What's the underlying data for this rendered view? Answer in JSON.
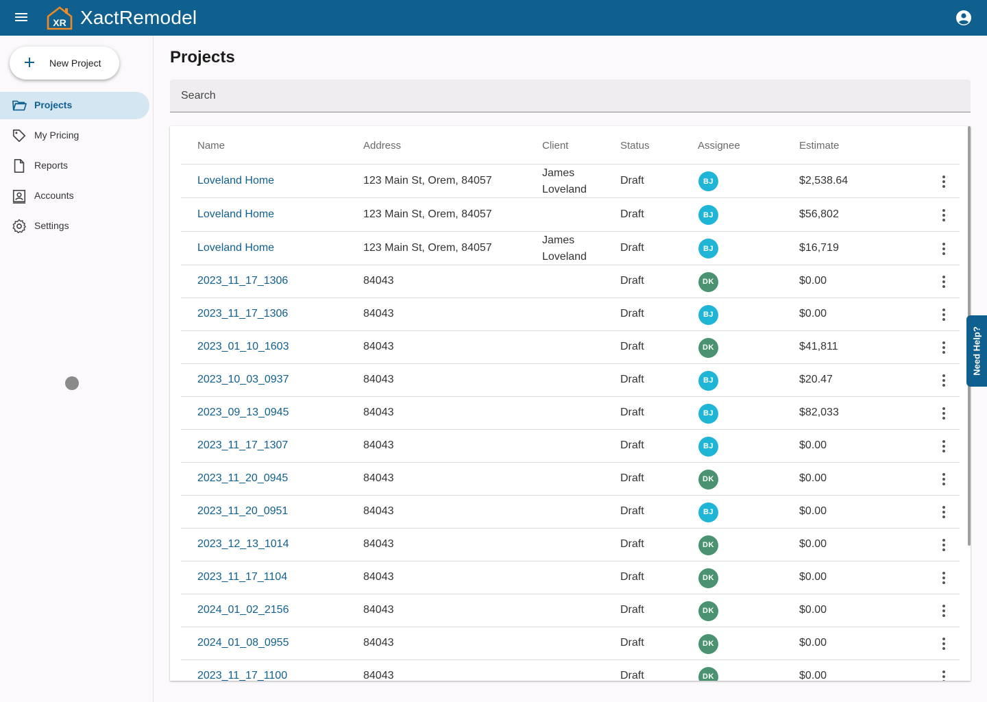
{
  "app": {
    "title": "XactRemodel",
    "logo_text": "XR",
    "brand_color": "#10608f",
    "accent_orange": "#f08a24"
  },
  "sidebar": {
    "new_project_label": "New Project",
    "items": [
      {
        "label": "Projects",
        "icon": "folder-open-icon",
        "active": true
      },
      {
        "label": "My Pricing",
        "icon": "tag-icon",
        "active": false
      },
      {
        "label": "Reports",
        "icon": "document-icon",
        "active": false
      },
      {
        "label": "Accounts",
        "icon": "account-box-icon",
        "active": false
      },
      {
        "label": "Settings",
        "icon": "gear-icon",
        "active": false
      }
    ]
  },
  "main": {
    "page_title": "Projects",
    "search_placeholder": "Search",
    "columns": [
      "Name",
      "Address",
      "Client",
      "Status",
      "Assignee",
      "Estimate"
    ],
    "rows": [
      {
        "name": "Loveland Home",
        "address": "123 Main St, Orem, 84057",
        "client": "James Loveland",
        "status": "Draft",
        "assignee": "BJ",
        "estimate": "$2,538.64"
      },
      {
        "name": "Loveland Home",
        "address": "123 Main St, Orem, 84057",
        "client": "",
        "status": "Draft",
        "assignee": "BJ",
        "estimate": "$56,802"
      },
      {
        "name": "Loveland Home",
        "address": "123 Main St, Orem, 84057",
        "client": "James Loveland",
        "status": "Draft",
        "assignee": "BJ",
        "estimate": "$16,719"
      },
      {
        "name": "2023_11_17_1306",
        "address": "84043",
        "client": "",
        "status": "Draft",
        "assignee": "DK",
        "estimate": "$0.00"
      },
      {
        "name": "2023_11_17_1306",
        "address": "84043",
        "client": "",
        "status": "Draft",
        "assignee": "BJ",
        "estimate": "$0.00"
      },
      {
        "name": "2023_01_10_1603",
        "address": "84043",
        "client": "",
        "status": "Draft",
        "assignee": "DK",
        "estimate": "$41,811"
      },
      {
        "name": "2023_10_03_0937",
        "address": "84043",
        "client": "",
        "status": "Draft",
        "assignee": "BJ",
        "estimate": "$20.47"
      },
      {
        "name": "2023_09_13_0945",
        "address": "84043",
        "client": "",
        "status": "Draft",
        "assignee": "BJ",
        "estimate": "$82,033"
      },
      {
        "name": "2023_11_17_1307",
        "address": "84043",
        "client": "",
        "status": "Draft",
        "assignee": "BJ",
        "estimate": "$0.00"
      },
      {
        "name": "2023_11_20_0945",
        "address": "84043",
        "client": "",
        "status": "Draft",
        "assignee": "DK",
        "estimate": "$0.00"
      },
      {
        "name": "2023_11_20_0951",
        "address": "84043",
        "client": "",
        "status": "Draft",
        "assignee": "BJ",
        "estimate": "$0.00"
      },
      {
        "name": "2023_12_13_1014",
        "address": "84043",
        "client": "",
        "status": "Draft",
        "assignee": "DK",
        "estimate": "$0.00"
      },
      {
        "name": "2023_11_17_1104",
        "address": "84043",
        "client": "",
        "status": "Draft",
        "assignee": "DK",
        "estimate": "$0.00"
      },
      {
        "name": "2024_01_02_2156",
        "address": "84043",
        "client": "",
        "status": "Draft",
        "assignee": "DK",
        "estimate": "$0.00"
      },
      {
        "name": "2024_01_08_0955",
        "address": "84043",
        "client": "",
        "status": "Draft",
        "assignee": "DK",
        "estimate": "$0.00"
      },
      {
        "name": "2023_11_17_1100",
        "address": "84043",
        "client": "",
        "status": "Draft",
        "assignee": "DK",
        "estimate": "$0.00"
      }
    ],
    "avatar_colors": {
      "BJ": "#1fb5d6",
      "DK": "#4a9270"
    }
  },
  "help_tab_label": "Need Help?"
}
